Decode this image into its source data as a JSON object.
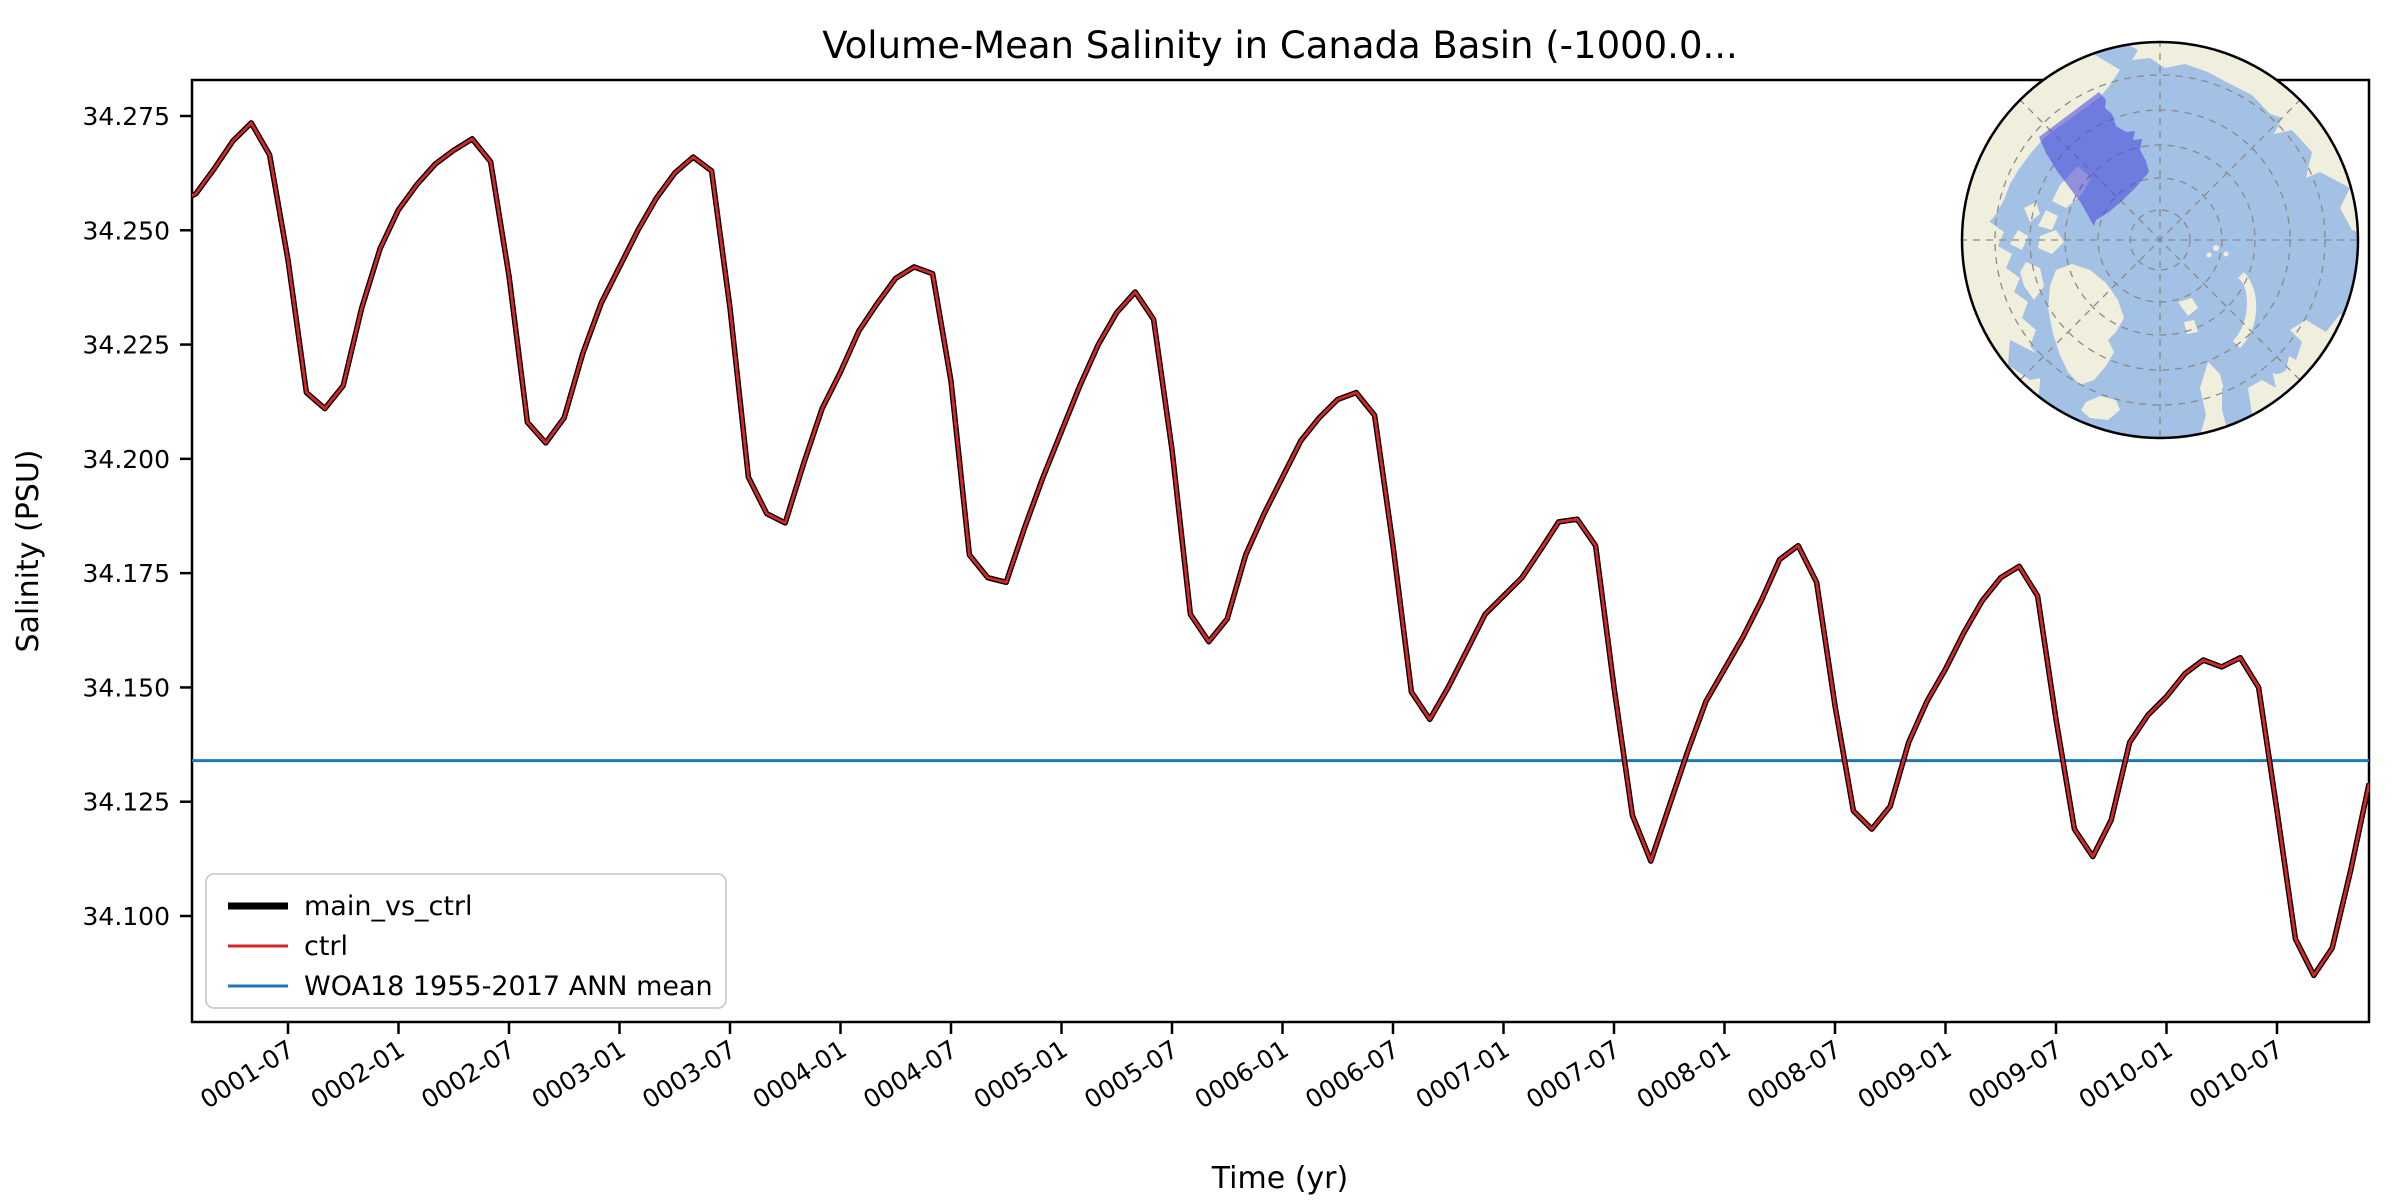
{
  "title": "Volume-Mean Salinity in Canada Basin (-1000.0...",
  "axes": {
    "xlabel": "Time (yr)",
    "ylabel": "Salinity (PSU)"
  },
  "legend": {
    "entries": [
      {
        "label": "main_vs_ctrl",
        "color": "#000000",
        "width": 7
      },
      {
        "label": "ctrl",
        "color": "#d62728",
        "width": 3
      },
      {
        "label": "WOA18 1955-2017 ANN mean",
        "color": "#1f77b4",
        "width": 3
      }
    ]
  },
  "chart_data": {
    "type": "line",
    "title": "Volume-Mean Salinity in Canada Basin (-1000.0...",
    "xlabel": "Time (yr)",
    "ylabel": "Salinity (PSU)",
    "cadence": "monthly",
    "x_start": "0001-01",
    "x_end": "0010-12",
    "x_tick_labels": [
      "0001-07",
      "0002-01",
      "0002-07",
      "0003-01",
      "0003-07",
      "0004-01",
      "0004-07",
      "0005-01",
      "0005-07",
      "0006-01",
      "0006-07",
      "0007-01",
      "0007-07",
      "0008-01",
      "0008-07",
      "0009-01",
      "0009-07",
      "0010-01",
      "0010-07"
    ],
    "y_tick_labels": [
      "34.275",
      "34.250",
      "34.225",
      "34.200",
      "34.175",
      "34.150",
      "34.125",
      "34.100"
    ],
    "y_tick_values": [
      34.275,
      34.25,
      34.225,
      34.2,
      34.175,
      34.15,
      34.125,
      34.1
    ],
    "ylim": [
      34.077,
      34.283
    ],
    "grid": false,
    "legend_position": "lower left",
    "series": [
      {
        "name": "main_vs_ctrl",
        "color": "#000000",
        "values": [
          34.256,
          34.258,
          34.2635,
          34.2695,
          34.2735,
          34.2665,
          34.2435,
          34.2145,
          34.211,
          34.216,
          34.233,
          34.246,
          34.2545,
          34.26,
          34.2645,
          34.2675,
          34.27,
          34.265,
          34.24,
          34.208,
          34.2035,
          34.209,
          34.223,
          34.234,
          34.242,
          34.25,
          34.257,
          34.2625,
          34.266,
          34.263,
          34.233,
          34.196,
          34.188,
          34.186,
          34.199,
          34.211,
          34.219,
          34.228,
          34.234,
          34.2395,
          34.242,
          34.2405,
          34.217,
          34.179,
          34.174,
          34.173,
          34.185,
          34.196,
          34.206,
          34.216,
          34.225,
          34.232,
          34.2365,
          34.2305,
          34.202,
          34.166,
          34.16,
          34.165,
          34.179,
          34.188,
          34.196,
          34.204,
          34.209,
          34.213,
          34.2145,
          34.2095,
          34.181,
          34.149,
          34.143,
          34.15,
          34.158,
          34.166,
          34.17,
          34.174,
          34.18,
          34.1862,
          34.1868,
          34.181,
          34.15,
          34.122,
          34.112,
          34.124,
          34.136,
          34.147,
          34.154,
          34.161,
          34.169,
          34.178,
          34.181,
          34.173,
          34.146,
          34.123,
          34.119,
          34.124,
          34.138,
          34.147,
          34.154,
          34.162,
          34.169,
          34.174,
          34.1765,
          34.17,
          34.143,
          34.119,
          34.113,
          34.121,
          34.138,
          34.144,
          34.148,
          34.153,
          34.156,
          34.1545,
          34.1565,
          34.15,
          34.123,
          34.095,
          34.087,
          34.093,
          34.11,
          34.129
        ]
      },
      {
        "name": "ctrl",
        "color": "#d62728",
        "values_same_as": "main_vs_ctrl"
      },
      {
        "name": "WOA18 1955-2017 ANN mean",
        "color": "#1f77b4",
        "constant": 34.134
      }
    ]
  },
  "inset_map": {
    "region": "Canada Basin",
    "projection": "north-polar-stereographic",
    "ocean_color": "#a3c0e5",
    "land_color": "#f0eedc",
    "highlight_fill": "#4444dc",
    "highlight_edge": "#2a2ad4",
    "graticule_color": "#8a8a8a"
  }
}
